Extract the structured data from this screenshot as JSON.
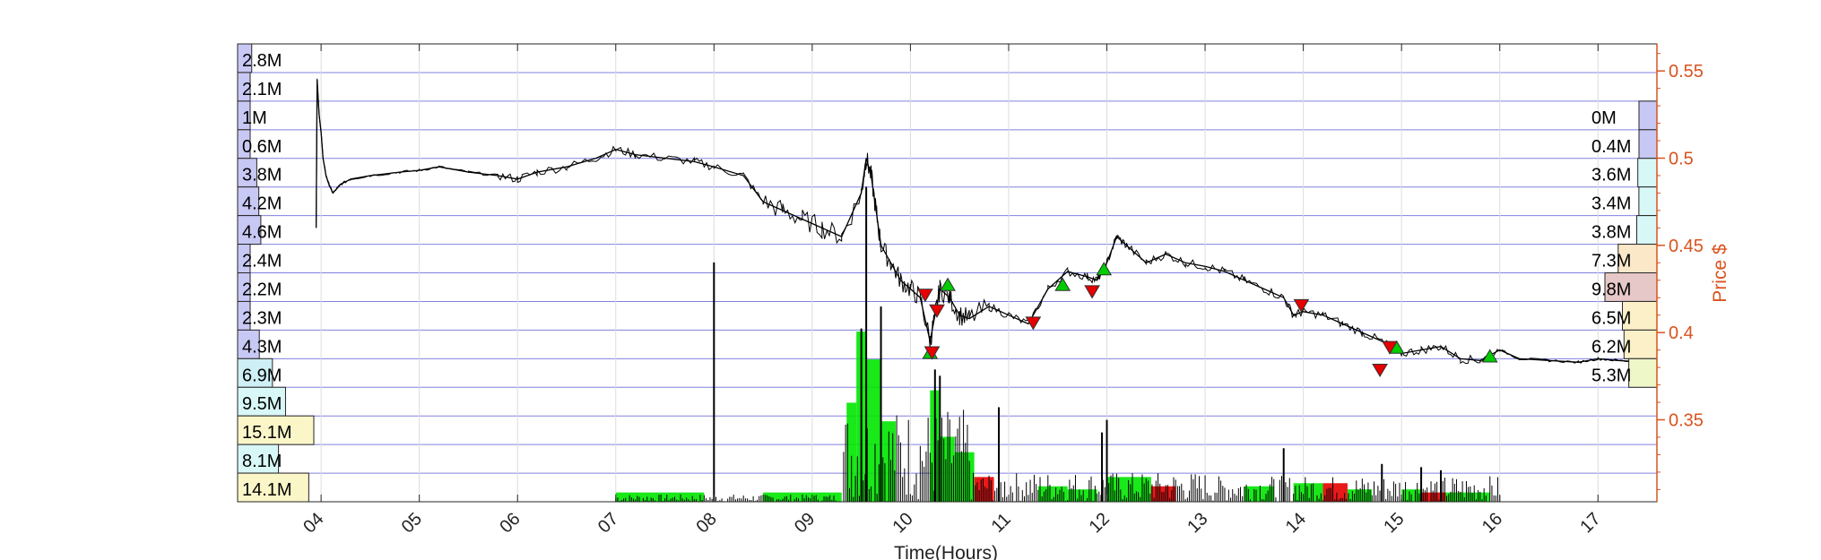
{
  "chart_data": {
    "type": "line",
    "title": "",
    "xlabel": "Time(Hours)",
    "ylabel": "Price $",
    "x_ticks": [
      "04",
      "05",
      "06",
      "07",
      "08",
      "09",
      "10",
      "11",
      "12",
      "13",
      "14",
      "15",
      "16",
      "17"
    ],
    "x_range": [
      3.15,
      17.6
    ],
    "y_ticks": [
      "0.55",
      "0.5",
      "0.45",
      "0.4",
      "0.35"
    ],
    "y_tick_values": [
      0.55,
      0.5,
      0.45,
      0.4,
      0.35
    ],
    "y_range": [
      0.303,
      0.5655
    ],
    "grid": true,
    "colors": {
      "price_line": "#000000",
      "grid_horizontal": "#8080e0",
      "grid_vertical": "#dcdcdc",
      "right_axis": "#d9531e",
      "buy_volume": "#00e600",
      "sell_volume": "#e60000",
      "buy_marker": "#00cc00",
      "sell_marker": "#e60000"
    },
    "price_series": {
      "name": "Price",
      "x": [
        3.95,
        3.96,
        3.98,
        4.0,
        4.02,
        4.05,
        4.08,
        4.12,
        4.2,
        4.3,
        4.5,
        4.8,
        5.0,
        5.2,
        5.5,
        5.8,
        6.0,
        6.2,
        6.5,
        6.8,
        7.0,
        7.2,
        7.5,
        7.8,
        8.0,
        8.3,
        8.5,
        8.7,
        8.9,
        9.1,
        9.3,
        9.5,
        9.55,
        9.6,
        9.65,
        9.7,
        9.8,
        9.9,
        10.0,
        10.1,
        10.2,
        10.25,
        10.3,
        10.4,
        10.5,
        10.6,
        10.8,
        11.0,
        11.2,
        11.4,
        11.6,
        11.8,
        11.9,
        12.0,
        12.1,
        12.2,
        12.4,
        12.6,
        12.8,
        13.0,
        13.2,
        13.4,
        13.6,
        13.8,
        13.9,
        14.0,
        14.2,
        14.4,
        14.6,
        14.8,
        15.0,
        15.2,
        15.4,
        15.6,
        15.8,
        16.0,
        16.2,
        16.5,
        16.8,
        17.0,
        17.2,
        17.5
      ],
      "y": [
        0.46,
        0.545,
        0.525,
        0.515,
        0.5,
        0.49,
        0.485,
        0.48,
        0.485,
        0.488,
        0.49,
        0.492,
        0.493,
        0.495,
        0.492,
        0.49,
        0.488,
        0.492,
        0.495,
        0.5,
        0.505,
        0.502,
        0.5,
        0.498,
        0.495,
        0.49,
        0.475,
        0.47,
        0.465,
        0.46,
        0.455,
        0.48,
        0.5,
        0.49,
        0.47,
        0.45,
        0.44,
        0.43,
        0.425,
        0.42,
        0.395,
        0.41,
        0.425,
        0.42,
        0.41,
        0.408,
        0.415,
        0.41,
        0.405,
        0.425,
        0.435,
        0.432,
        0.43,
        0.44,
        0.455,
        0.45,
        0.44,
        0.445,
        0.44,
        0.438,
        0.435,
        0.43,
        0.425,
        0.42,
        0.41,
        0.412,
        0.41,
        0.405,
        0.4,
        0.395,
        0.388,
        0.39,
        0.392,
        0.385,
        0.384,
        0.39,
        0.385,
        0.384,
        0.383,
        0.385,
        0.384,
        0.383
      ]
    },
    "volume_spikes": [
      {
        "x": 8.0,
        "v": 0.76
      },
      {
        "x": 9.5,
        "v": 0.55
      },
      {
        "x": 9.55,
        "v": 1.0
      },
      {
        "x": 9.7,
        "v": 0.62
      },
      {
        "x": 10.25,
        "v": 0.42
      },
      {
        "x": 10.3,
        "v": 0.4
      },
      {
        "x": 10.9,
        "v": 0.3
      },
      {
        "x": 11.95,
        "v": 0.22
      },
      {
        "x": 12.0,
        "v": 0.26
      },
      {
        "x": 13.8,
        "v": 0.17
      },
      {
        "x": 14.8,
        "v": 0.12
      },
      {
        "x": 15.2,
        "v": 0.11
      },
      {
        "x": 15.4,
        "v": 0.1
      }
    ],
    "trade_volume_bars": [
      {
        "x0": 7.0,
        "x1": 7.9,
        "v": 0.03,
        "side": "buy"
      },
      {
        "x0": 8.5,
        "x1": 9.3,
        "v": 0.03,
        "side": "buy"
      },
      {
        "x0": 9.35,
        "x1": 9.45,
        "v": 0.32,
        "side": "buy"
      },
      {
        "x0": 9.45,
        "x1": 9.55,
        "v": 0.55,
        "side": "buy"
      },
      {
        "x0": 9.55,
        "x1": 9.7,
        "v": 0.46,
        "side": "buy"
      },
      {
        "x0": 9.7,
        "x1": 9.85,
        "v": 0.26,
        "side": "buy"
      },
      {
        "x0": 10.2,
        "x1": 10.3,
        "v": 0.36,
        "side": "buy"
      },
      {
        "x0": 10.3,
        "x1": 10.45,
        "v": 0.21,
        "side": "buy"
      },
      {
        "x0": 10.45,
        "x1": 10.65,
        "v": 0.16,
        "side": "buy"
      },
      {
        "x0": 10.65,
        "x1": 10.85,
        "v": 0.08,
        "side": "sell"
      },
      {
        "x0": 11.3,
        "x1": 11.6,
        "v": 0.05,
        "side": "buy"
      },
      {
        "x0": 11.6,
        "x1": 11.9,
        "v": 0.04,
        "side": "buy"
      },
      {
        "x0": 12.0,
        "x1": 12.2,
        "v": 0.08,
        "side": "buy"
      },
      {
        "x0": 12.2,
        "x1": 12.45,
        "v": 0.08,
        "side": "buy"
      },
      {
        "x0": 12.45,
        "x1": 12.7,
        "v": 0.05,
        "side": "sell"
      },
      {
        "x0": 13.4,
        "x1": 13.7,
        "v": 0.05,
        "side": "buy"
      },
      {
        "x0": 13.9,
        "x1": 14.2,
        "v": 0.06,
        "side": "buy"
      },
      {
        "x0": 14.2,
        "x1": 14.45,
        "v": 0.06,
        "side": "sell"
      },
      {
        "x0": 14.45,
        "x1": 14.7,
        "v": 0.04,
        "side": "buy"
      },
      {
        "x0": 15.0,
        "x1": 15.2,
        "v": 0.04,
        "side": "buy"
      },
      {
        "x0": 15.2,
        "x1": 15.45,
        "v": 0.03,
        "side": "sell"
      },
      {
        "x0": 15.45,
        "x1": 15.9,
        "v": 0.03,
        "side": "buy"
      }
    ],
    "buy_markers": [
      {
        "x": 10.2,
        "y": 0.388
      },
      {
        "x": 10.38,
        "y": 0.427
      },
      {
        "x": 11.55,
        "y": 0.427
      },
      {
        "x": 11.97,
        "y": 0.436
      },
      {
        "x": 14.95,
        "y": 0.391
      },
      {
        "x": 15.9,
        "y": 0.386
      }
    ],
    "sell_markers": [
      {
        "x": 10.15,
        "y": 0.422
      },
      {
        "x": 10.27,
        "y": 0.413
      },
      {
        "x": 10.22,
        "y": 0.389
      },
      {
        "x": 11.25,
        "y": 0.406
      },
      {
        "x": 11.85,
        "y": 0.424
      },
      {
        "x": 13.98,
        "y": 0.416
      },
      {
        "x": 14.78,
        "y": 0.379
      },
      {
        "x": 14.88,
        "y": 0.392
      }
    ],
    "volume_profile_left": [
      {
        "label": "2.8M",
        "value": 2.8,
        "color": "#c8c8f5"
      },
      {
        "label": "2.1M",
        "value": 2.1,
        "color": "#c8c8f5"
      },
      {
        "label": "1M",
        "value": 1.0,
        "color": "#c8c8f5"
      },
      {
        "label": "0.6M",
        "value": 0.6,
        "color": "#c8c8f5"
      },
      {
        "label": "3.8M",
        "value": 3.8,
        "color": "#c8c8f5"
      },
      {
        "label": "4.2M",
        "value": 4.2,
        "color": "#c8c8f5"
      },
      {
        "label": "4.6M",
        "value": 4.6,
        "color": "#c8c8f5"
      },
      {
        "label": "2.4M",
        "value": 2.4,
        "color": "#c8c8f5"
      },
      {
        "label": "2.2M",
        "value": 2.2,
        "color": "#c8c8f5"
      },
      {
        "label": "2.3M",
        "value": 2.3,
        "color": "#c8c8f5"
      },
      {
        "label": "4.3M",
        "value": 4.3,
        "color": "#c8c8f5"
      },
      {
        "label": "6.9M",
        "value": 6.9,
        "color": "#cdeff5"
      },
      {
        "label": "9.5M",
        "value": 9.5,
        "color": "#d8f7f7"
      },
      {
        "label": "15.1M",
        "value": 15.1,
        "color": "#fbf6c8"
      },
      {
        "label": "8.1M",
        "value": 8.1,
        "color": "#d8f7f7"
      },
      {
        "label": "14.1M",
        "value": 14.1,
        "color": "#fbf6c8"
      }
    ],
    "volume_profile_right": [
      {
        "label": "0M",
        "value": 0.0,
        "color": "#c8c8f5"
      },
      {
        "label": "0.4M",
        "value": 0.4,
        "color": "#c8c8f5"
      },
      {
        "label": "3.6M",
        "value": 3.6,
        "color": "#d8f7f7"
      },
      {
        "label": "3.4M",
        "value": 3.4,
        "color": "#d8f7f7"
      },
      {
        "label": "3.8M",
        "value": 3.8,
        "color": "#d8f7f7"
      },
      {
        "label": "7.3M",
        "value": 7.3,
        "color": "#fbe8c8"
      },
      {
        "label": "9.8M",
        "value": 9.8,
        "color": "#e6c8c8"
      },
      {
        "label": "6.5M",
        "value": 6.5,
        "color": "#fbf0c8"
      },
      {
        "label": "6.2M",
        "value": 6.2,
        "color": "#fbf0c8"
      },
      {
        "label": "5.3M",
        "value": 5.3,
        "color": "#eef7c8"
      }
    ]
  }
}
